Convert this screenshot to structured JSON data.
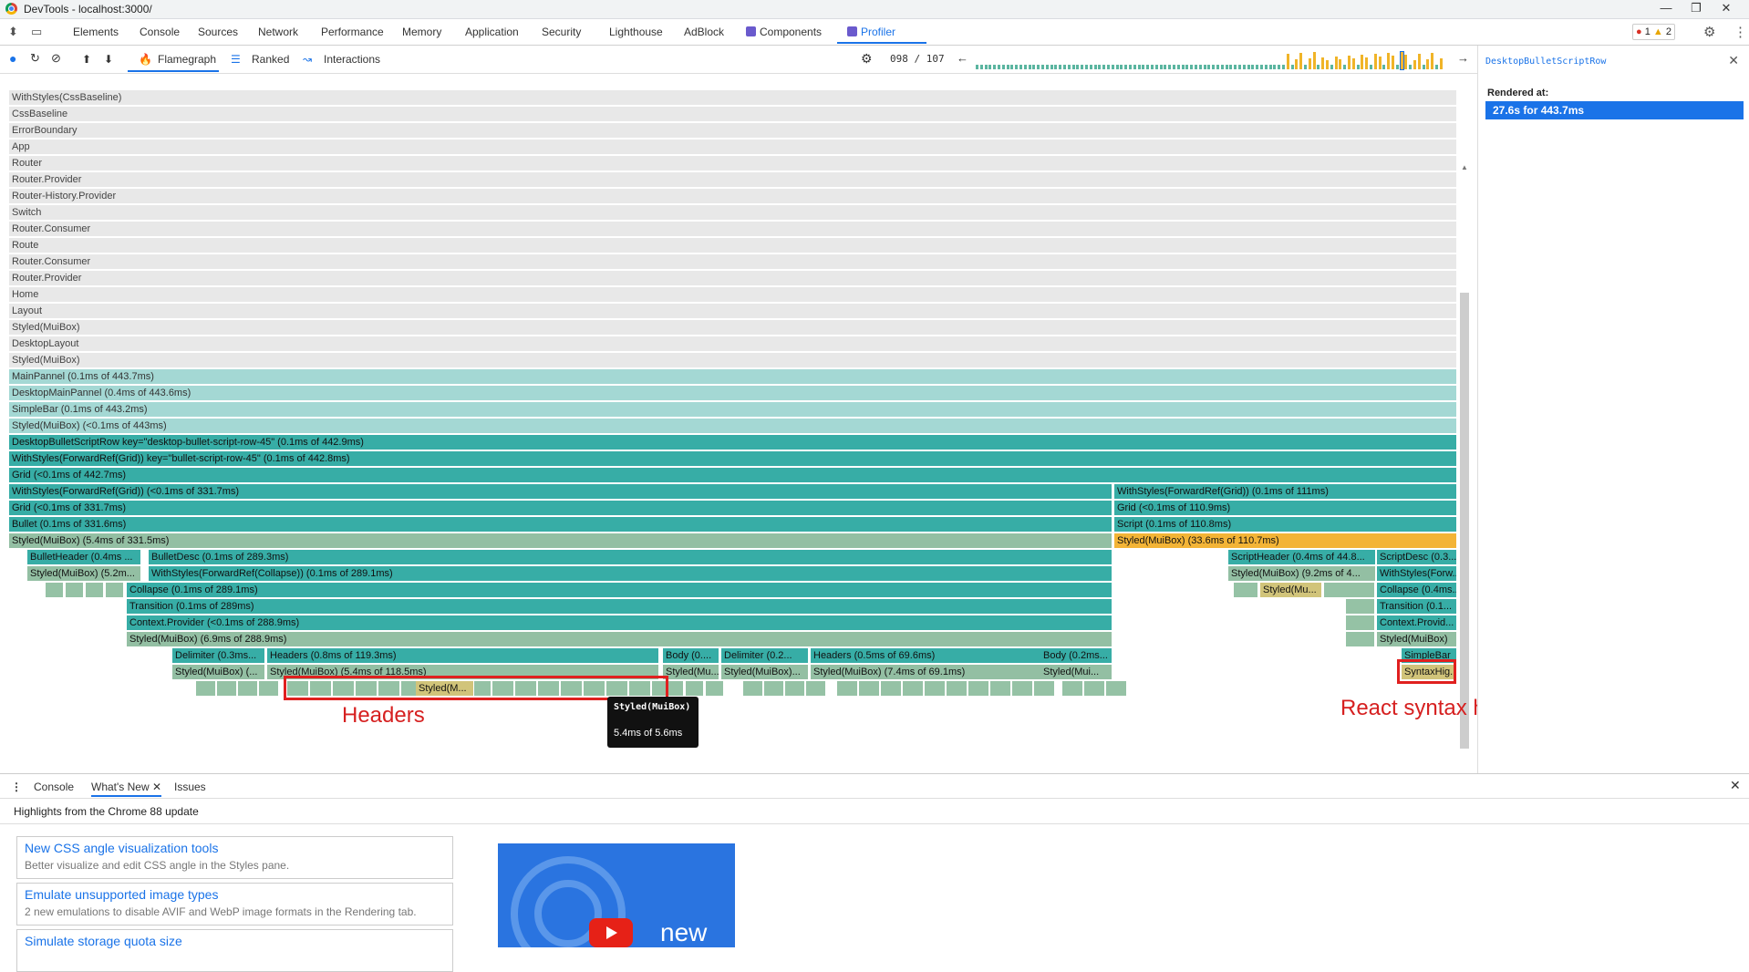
{
  "window": {
    "title": "DevTools - localhost:3000/"
  },
  "tabs": [
    {
      "label": "Elements"
    },
    {
      "label": "Console"
    },
    {
      "label": "Sources"
    },
    {
      "label": "Network"
    },
    {
      "label": "Performance"
    },
    {
      "label": "Memory"
    },
    {
      "label": "Application"
    },
    {
      "label": "Security"
    },
    {
      "label": "Lighthouse"
    },
    {
      "label": "AdBlock"
    },
    {
      "label": "Components"
    },
    {
      "label": "Profiler"
    }
  ],
  "status": {
    "errors": "1",
    "warnings": "2"
  },
  "profiler": {
    "tabs": [
      {
        "label": "Flamegraph"
      },
      {
        "label": "Ranked"
      },
      {
        "label": "Interactions"
      }
    ],
    "commit_counter": "098 / 107"
  },
  "flame": {
    "rows": [
      "WithStyles(CssBaseline)",
      "CssBaseline",
      "ErrorBoundary",
      "App",
      "Router",
      "Router.Provider",
      "Router-History.Provider",
      "Switch",
      "Router.Consumer",
      "Route",
      "Router.Consumer",
      "Router.Provider",
      "Home",
      "Layout",
      "Styled(MuiBox)",
      "DesktopLayout",
      "Styled(MuiBox)",
      "MainPannel (0.1ms of 443.7ms)",
      "DesktopMainPannel (0.4ms of 443.6ms)",
      "SimpleBar (0.1ms of 443.2ms)",
      "Styled(MuiBox) (<0.1ms of 443ms)",
      "DesktopBulletScriptRow key=\"desktop-bullet-script-row-45\" (0.1ms of 442.9ms)",
      "WithStyles(ForwardRef(Grid)) key=\"bullet-script-row-45\" (0.1ms of 442.8ms)",
      "Grid (<0.1ms of 442.7ms)"
    ],
    "left": [
      "WithStyles(ForwardRef(Grid)) (<0.1ms of 331.7ms)",
      "Grid (<0.1ms of 331.7ms)",
      "Bullet (0.1ms of 331.6ms)",
      "Styled(MuiBox) (5.4ms of 331.5ms)",
      "BulletHeader (0.4ms ...",
      "BulletDesc (0.1ms of 289.3ms)",
      "Styled(MuiBox) (5.2m...",
      "WithStyles(ForwardRef(Collapse)) (0.1ms of 289.1ms)",
      "Collapse (0.1ms of 289.1ms)",
      "Transition (0.1ms of 289ms)",
      "Context.Provider (<0.1ms of 288.9ms)",
      "Styled(MuiBox) (6.9ms of 288.9ms)",
      "Delimiter (0.3ms...",
      "Headers (0.8ms of 119.3ms)",
      "Body (0....",
      "Delimiter (0.2...",
      "Headers (0.5ms of 69.6ms)",
      "Body (0.2ms...",
      "Styled(MuiBox) (...",
      "Styled(MuiBox) (5.4ms of 118.5ms)",
      "Styled(Mu...",
      "Styled(MuiBox)...",
      "Styled(MuiBox) (7.4ms of 69.1ms)",
      "Styled(Mui...",
      "Styled(M..."
    ],
    "right": [
      "WithStyles(ForwardRef(Grid)) (0.1ms of 111ms)",
      "Grid (<0.1ms of 110.9ms)",
      "Script (0.1ms of 110.8ms)",
      "Styled(MuiBox) (33.6ms of 110.7ms)",
      "ScriptHeader (0.4ms of 44.8...",
      "ScriptDesc (0.3...",
      "Styled(MuiBox) (9.2ms of 4...",
      "WithStyles(Forw...",
      "Styled(Mu...",
      "Collapse (0.4ms...",
      "Transition (0.1...",
      "Context.Provid...",
      "Styled(MuiBox)",
      "SimpleBar",
      "SyntaxHig..."
    ]
  },
  "tooltip": {
    "name": "Styled(MuiBox)",
    "value": "5.4ms of 5.6ms"
  },
  "annotations": {
    "headers": "Headers",
    "syntax": "React syntax highlighter"
  },
  "side": {
    "component": "DesktopBulletScriptRow",
    "rendered_label": "Rendered at:",
    "rendered_value": "27.6s for 443.7ms"
  },
  "drawer": {
    "tabs": [
      {
        "label": "Console"
      },
      {
        "label": "What's New"
      },
      {
        "label": "Issues"
      }
    ],
    "heading": "Highlights from the Chrome 88 update",
    "cards": [
      {
        "title": "New CSS angle visualization tools",
        "desc": "Better visualize and edit CSS angle in the Styles pane."
      },
      {
        "title": "Emulate unsupported image types",
        "desc": "2 new emulations to disable AVIF and WebP image formats in the Rendering tab."
      },
      {
        "title": "Simulate storage quota size",
        "desc": ""
      }
    ],
    "video_label": "new"
  },
  "colors": {
    "accent": "#1a73e8",
    "teal": "#37ada6",
    "orange": "#f3b436",
    "annotation": "#d62020"
  },
  "icons": [
    "chrome-logo-icon",
    "inspect-icon",
    "device-icon",
    "record-icon",
    "reload-icon",
    "clear-icon",
    "upload-icon",
    "download-icon",
    "flamegraph-icon",
    "ranked-icon",
    "interactions-icon",
    "settings-icon",
    "prev-icon",
    "next-icon",
    "close-icon",
    "more-icon"
  ]
}
